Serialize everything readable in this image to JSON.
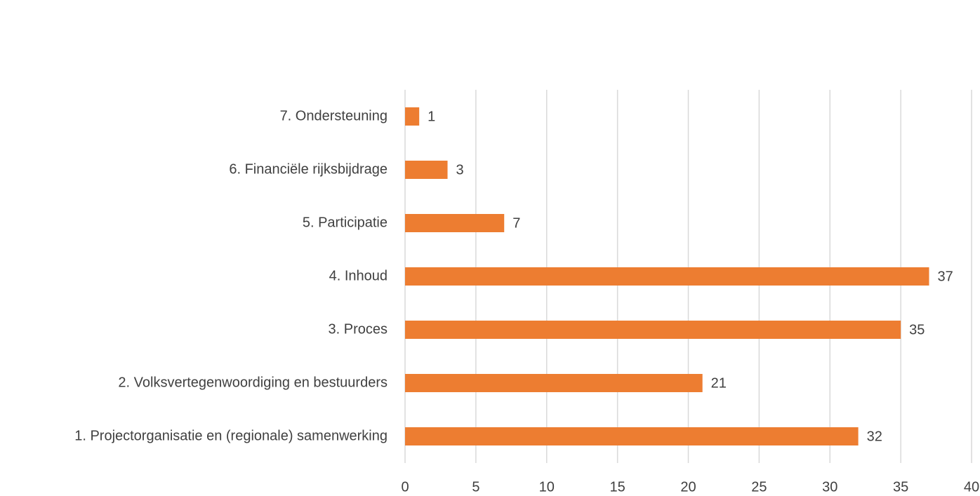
{
  "chart_data": {
    "type": "bar",
    "orientation": "horizontal",
    "categories": [
      "1. Projectorganisatie en (regionale) samenwerking",
      "2. Volksvertegenwoordiging en bestuurders",
      "3. Proces",
      "4. Inhoud",
      "5. Participatie",
      "6. Financiële rijksbijdrage",
      "7. Ondersteuning"
    ],
    "values": [
      32,
      21,
      35,
      37,
      7,
      3,
      1
    ],
    "color": "#ed7d31",
    "xlim": [
      0,
      40
    ],
    "xticks": [
      0,
      5,
      10,
      15,
      20,
      25,
      30,
      35,
      40
    ],
    "grid": true,
    "data_labels": true
  }
}
